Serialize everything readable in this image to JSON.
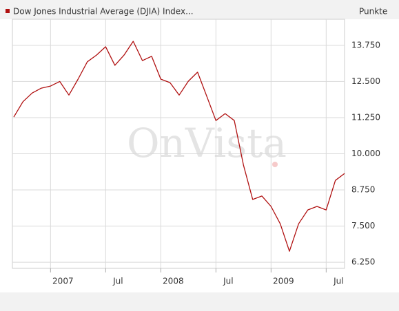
{
  "chart_data": {
    "type": "line",
    "ylabel": "Punkte",
    "watermark": "OnVista",
    "x": [
      "2006-09",
      "2006-10",
      "2006-11",
      "2006-12",
      "2007-01",
      "2007-02",
      "2007-03",
      "2007-04",
      "2007-05",
      "2007-06",
      "2007-07",
      "2007-08",
      "2007-09",
      "2007-10",
      "2007-11",
      "2007-12",
      "2008-01",
      "2008-02",
      "2008-03",
      "2008-04",
      "2008-05",
      "2008-06",
      "2008-07",
      "2008-08",
      "2008-09",
      "2008-10",
      "2008-11",
      "2008-12",
      "2009-01",
      "2009-02",
      "2009-03",
      "2009-04",
      "2009-05",
      "2009-06",
      "2009-07",
      "2009-08",
      "2009-09"
    ],
    "series": [
      {
        "name": "Dow Jones Industrial Average (DJIA) Index...",
        "color": "#b01010",
        "values": [
          11270,
          11800,
          12100,
          12270,
          12340,
          12500,
          12030,
          12580,
          13180,
          13410,
          13700,
          13060,
          13410,
          13890,
          13220,
          13370,
          12580,
          12460,
          12030,
          12510,
          12820,
          11990,
          11150,
          11390,
          11150,
          9610,
          8420,
          8540,
          8180,
          7580,
          6630,
          7580,
          8060,
          8180,
          8060,
          9080,
          9320
        ]
      }
    ],
    "ylim": [
      6040,
      14650
    ],
    "yticks": [
      {
        "value": 6250,
        "label": "6.250"
      },
      {
        "value": 7500,
        "label": "7.500"
      },
      {
        "value": 8750,
        "label": "8.750"
      },
      {
        "value": 10000,
        "label": "10.000"
      },
      {
        "value": 11250,
        "label": "11.250"
      },
      {
        "value": 12500,
        "label": "12.500"
      },
      {
        "value": 13750,
        "label": "13.750"
      }
    ],
    "xticks": [
      {
        "value": "2007-01",
        "label": "2007"
      },
      {
        "value": "2007-07",
        "label": "Jul"
      },
      {
        "value": "2008-01",
        "label": "2008"
      },
      {
        "value": "2008-07",
        "label": "Jul"
      },
      {
        "value": "2009-01",
        "label": "2009"
      },
      {
        "value": "2009-07",
        "label": "Jul"
      }
    ],
    "grid": true
  }
}
